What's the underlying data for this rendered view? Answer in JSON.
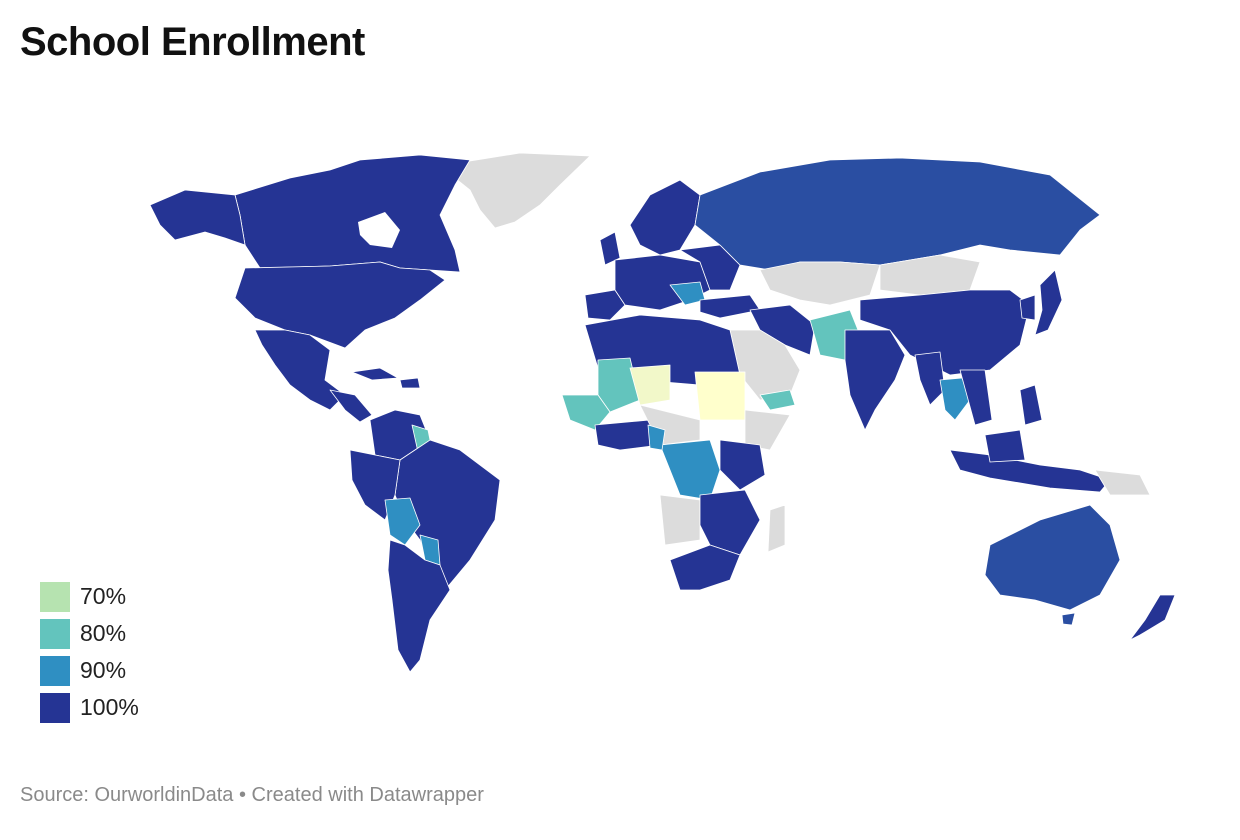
{
  "title": "School Enrollment",
  "source": "Source: OurworldinData • Created with Datawrapper",
  "colors": {
    "no_data": "#dcdcdc",
    "c70": "#b6e3b0",
    "c80": "#63c4bd",
    "c90": "#2f8fc2",
    "c100": "#253494",
    "c100b": "#2a4ea2",
    "low": "#f2f8c9",
    "lowest": "#ffffcc",
    "border": "#ffffff"
  },
  "legend": [
    {
      "label": "70%",
      "color": "#b6e3b0"
    },
    {
      "label": "80%",
      "color": "#63c4bd"
    },
    {
      "label": "90%",
      "color": "#2f8fc2"
    },
    {
      "label": "100%",
      "color": "#253494"
    }
  ]
}
